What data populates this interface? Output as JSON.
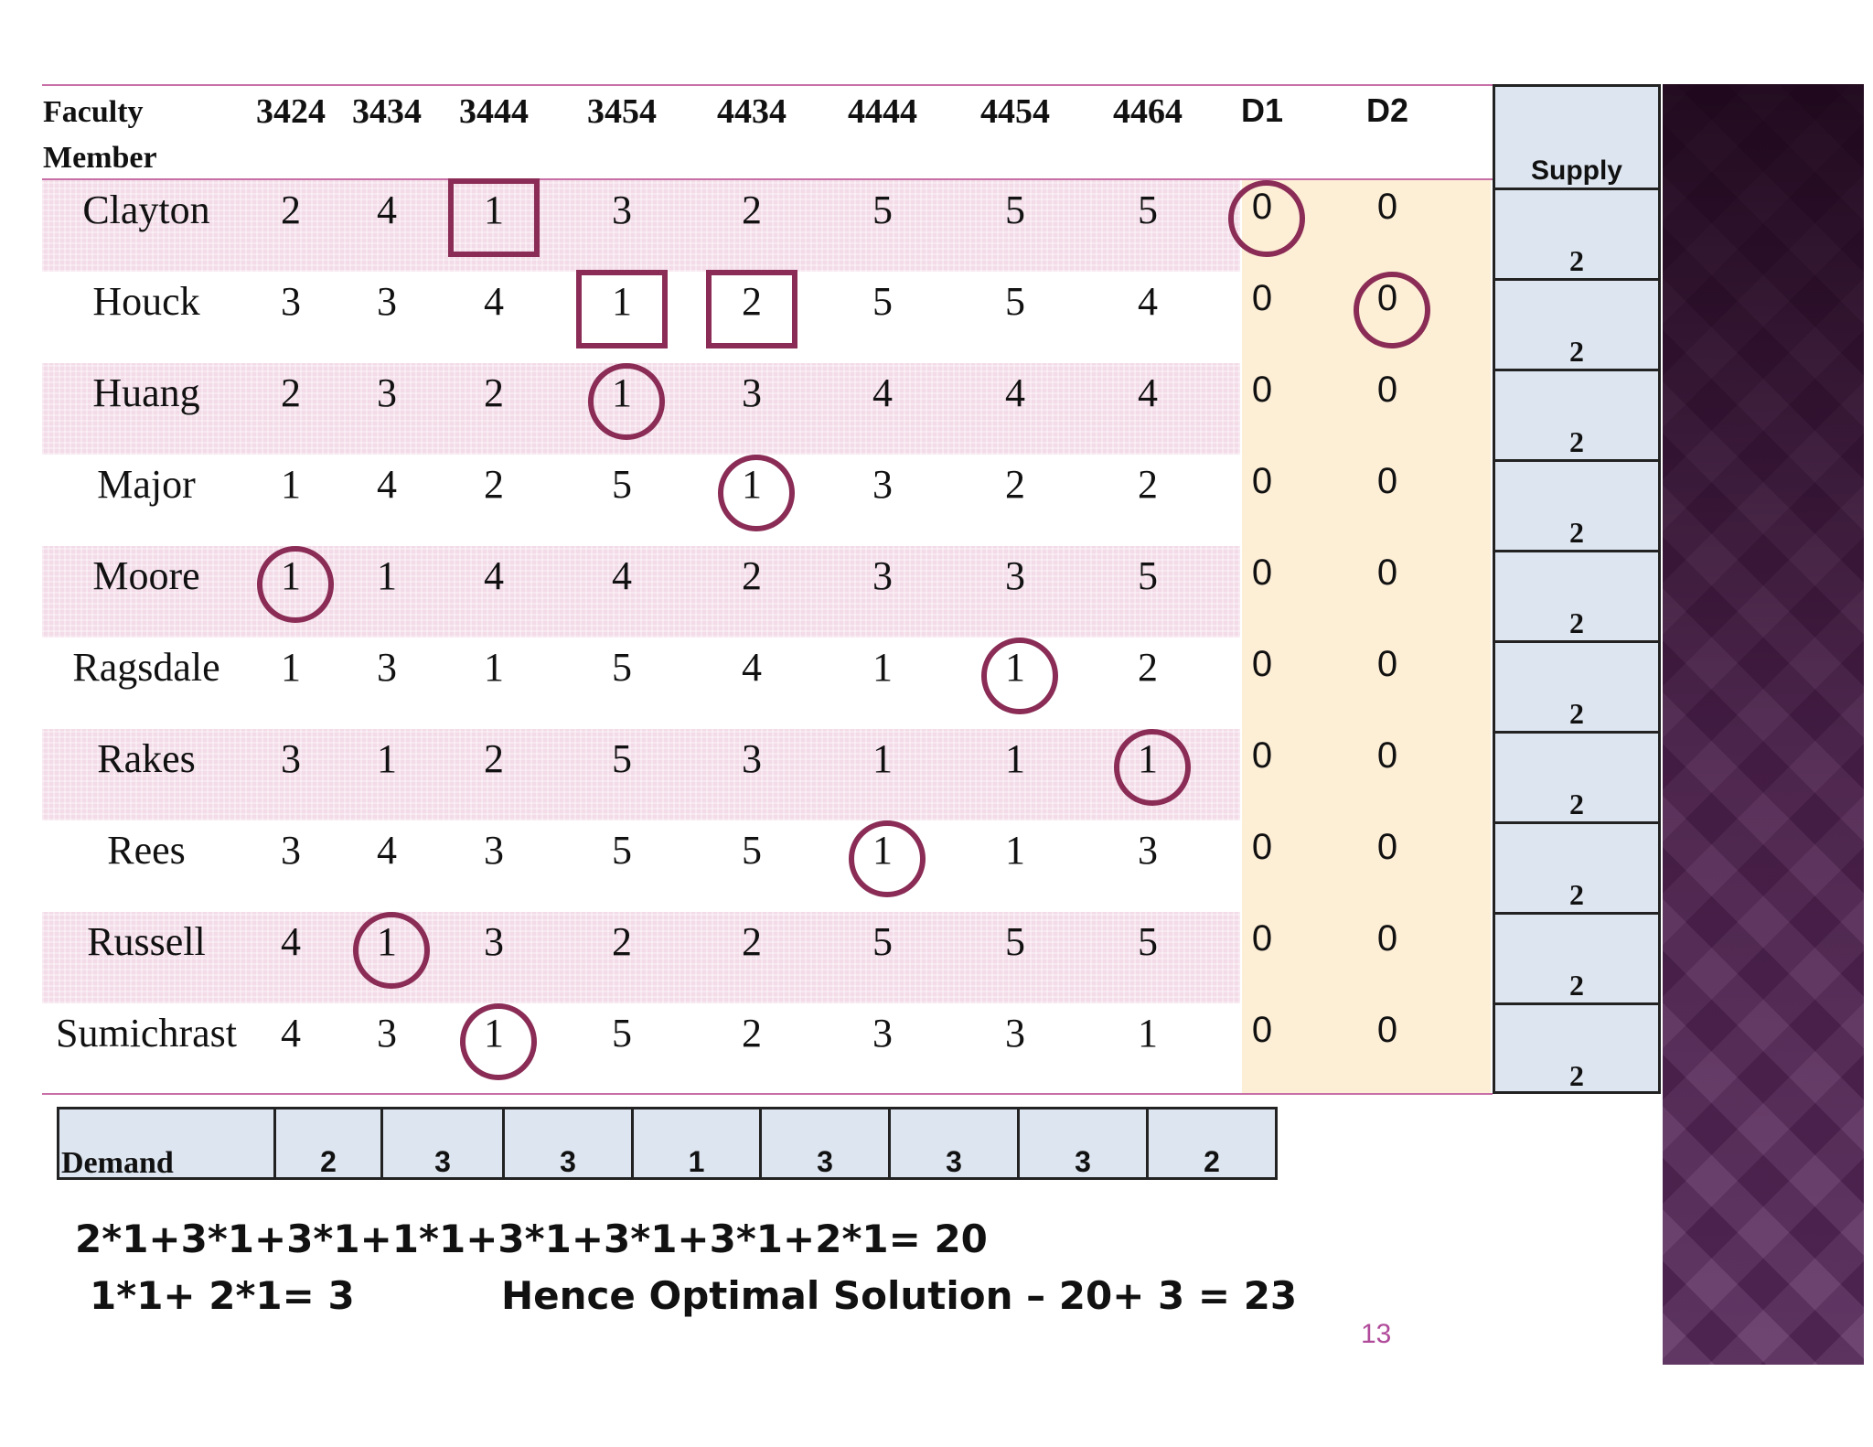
{
  "table": {
    "header_label": "Faculty\nMember",
    "columns": [
      "3424",
      "3434",
      "3444",
      "3454",
      "4434",
      "4444",
      "4454",
      "4464",
      "D1",
      "D2"
    ],
    "rows": [
      {
        "name": "Clayton",
        "values": [
          "2",
          "4",
          "1",
          "3",
          "2",
          "5",
          "5",
          "5",
          "0",
          "0"
        ]
      },
      {
        "name": "Houck",
        "values": [
          "3",
          "3",
          "4",
          "1",
          "2",
          "5",
          "5",
          "4",
          "0",
          "0"
        ]
      },
      {
        "name": "Huang",
        "values": [
          "2",
          "3",
          "2",
          "1",
          "3",
          "4",
          "4",
          "4",
          "0",
          "0"
        ]
      },
      {
        "name": "Major",
        "values": [
          "1",
          "4",
          "2",
          "5",
          "1",
          "3",
          "2",
          "2",
          "0",
          "0"
        ]
      },
      {
        "name": "Moore",
        "values": [
          "1",
          "1",
          "4",
          "4",
          "2",
          "3",
          "3",
          "5",
          "0",
          "0"
        ]
      },
      {
        "name": "Ragsdale",
        "values": [
          "1",
          "3",
          "1",
          "5",
          "4",
          "1",
          "1",
          "2",
          "0",
          "0"
        ]
      },
      {
        "name": "Rakes",
        "values": [
          "3",
          "1",
          "2",
          "5",
          "3",
          "1",
          "1",
          "1",
          "0",
          "0"
        ]
      },
      {
        "name": "Rees",
        "values": [
          "3",
          "4",
          "3",
          "5",
          "5",
          "1",
          "1",
          "3",
          "0",
          "0"
        ]
      },
      {
        "name": "Russell",
        "values": [
          "4",
          "1",
          "3",
          "2",
          "2",
          "5",
          "5",
          "5",
          "0",
          "0"
        ]
      },
      {
        "name": "Sumichrast",
        "values": [
          "4",
          "3",
          "1",
          "5",
          "2",
          "3",
          "3",
          "1",
          "0",
          "0"
        ]
      }
    ],
    "supply_label": "Supply",
    "supply": [
      "2",
      "2",
      "2",
      "2",
      "2",
      "2",
      "2",
      "2",
      "2",
      "2"
    ],
    "demand_label": "Demand",
    "demand": [
      "2",
      "3",
      "3",
      "1",
      "3",
      "3",
      "3",
      "2"
    ]
  },
  "equations": {
    "line1": "2*1+3*1+3*1+1*1+3*1+3*1+3*1+2*1= 20",
    "line2a": "1*1+ 2*1= 3",
    "line2b": "Hence Optimal Solution – 20+ 3 = 23"
  },
  "page_number": "13",
  "colors": {
    "marker": "#8a2c55",
    "row_pink": "#f3dbe8",
    "dummy_bg": "#fdeed6",
    "supply_bg": "#dde5f0",
    "rule": "#c76fa6",
    "page_number": "#b04a9a"
  }
}
